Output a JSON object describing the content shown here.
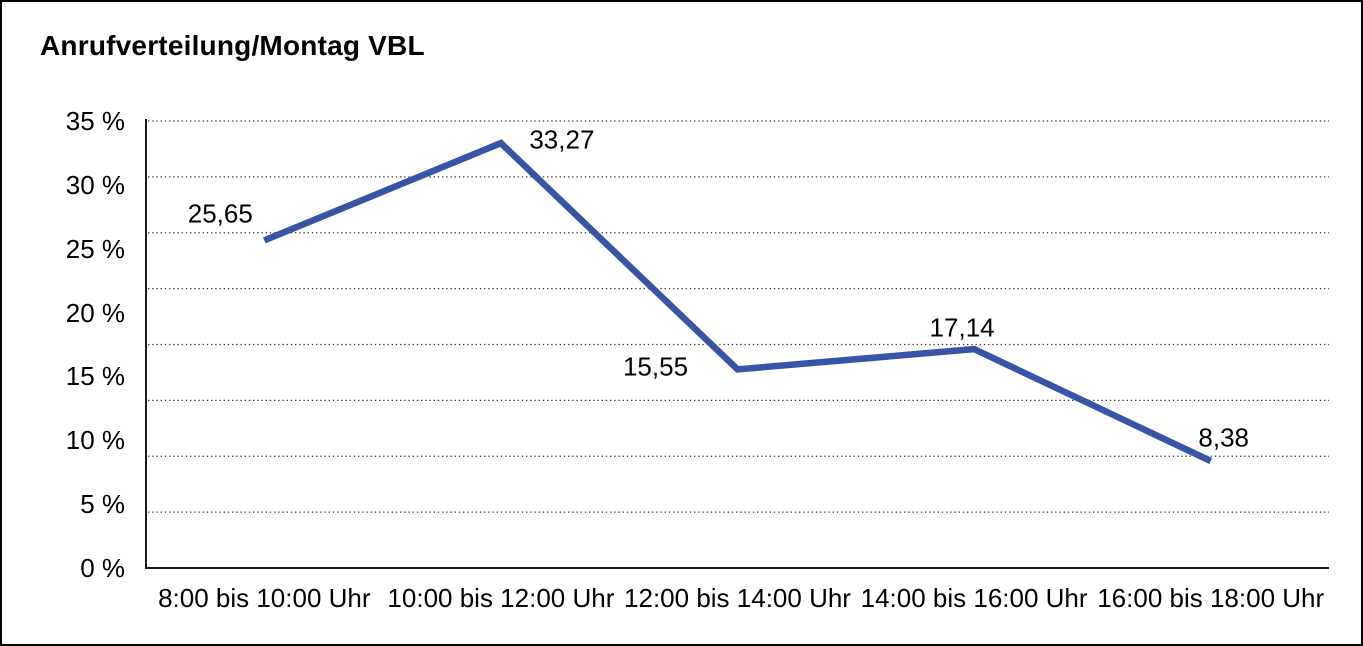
{
  "window": {
    "title": "Anrufverteilung/Montag VBL"
  },
  "colors": {
    "background": "#ffffff",
    "frame_border": "#000000",
    "line": "#3854A6",
    "gridline": "#3d3d3d",
    "axis": "#1a1a1a",
    "text": "#000000"
  },
  "chart_data": {
    "type": "line",
    "title": "Anrufverteilung/Montag VBL",
    "categories": [
      "8:00 bis 10:00 Uhr",
      "10:00 bis 12:00 Uhr",
      "12:00 bis 14:00 Uhr",
      "14:00 bis 16:00 Uhr",
      "16:00 bis 18:00 Uhr"
    ],
    "values": [
      25.65,
      33.27,
      15.55,
      17.14,
      8.38
    ],
    "value_labels": [
      "25,65",
      "33,27",
      "15,55",
      "17,14",
      "8,38"
    ],
    "y_ticks": [
      "35 %",
      "30 %",
      "25 %",
      "20 %",
      "15 %",
      "10 %",
      "5 %",
      "0 %"
    ],
    "y_tick_values": [
      35,
      30,
      25,
      20,
      15,
      10,
      5,
      0
    ],
    "ylim": [
      0,
      35
    ],
    "xlabel": "",
    "ylabel": "",
    "grid": {
      "horizontal_divisions": 8,
      "style": "dotted"
    },
    "legend": "none"
  }
}
